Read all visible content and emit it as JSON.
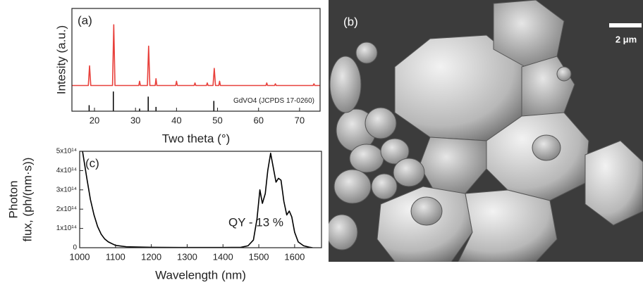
{
  "chart_data": [
    {
      "type": "line",
      "panel_label": "(a)",
      "xlabel": "Two theta (°)",
      "ylabel": "Intesity (a.u.)",
      "xlim": [
        14.5,
        75
      ],
      "xticks": [
        20,
        30,
        40,
        50,
        60,
        70
      ],
      "ylim": [
        0,
        1.2
      ],
      "series": [
        {
          "color": "#e8413c",
          "style": "line",
          "x": [
            14.5,
            18.5,
            18.8,
            19.1,
            24.4,
            24.7,
            25.0,
            30.8,
            31.0,
            31.2,
            32.9,
            33.2,
            33.5,
            34.8,
            35.0,
            35.2,
            39.8,
            40.0,
            40.2,
            44.3,
            44.5,
            44.7,
            47.3,
            47.5,
            47.7,
            48.9,
            49.2,
            49.5,
            50.3,
            50.5,
            50.7,
            61.8,
            62.0,
            62.2,
            63.9,
            64.1,
            64.3,
            73.3,
            73.5,
            73.7,
            75
          ],
          "values": [
            0.3,
            0.3,
            0.53,
            0.3,
            0.3,
            1.01,
            0.3,
            0.3,
            0.35,
            0.3,
            0.3,
            0.76,
            0.3,
            0.3,
            0.38,
            0.3,
            0.3,
            0.35,
            0.3,
            0.3,
            0.33,
            0.3,
            0.3,
            0.33,
            0.3,
            0.3,
            0.5,
            0.3,
            0.3,
            0.35,
            0.3,
            0.3,
            0.33,
            0.3,
            0.3,
            0.32,
            0.3,
            0.3,
            0.32,
            0.3,
            0.3
          ]
        },
        {
          "name": "GdVO4 (JCPDS 17-0260)",
          "color": "#000000",
          "style": "stick",
          "x": [
            18.7,
            24.6,
            31.0,
            33.1,
            35.0,
            49.1
          ],
          "values": [
            0.07,
            0.23,
            0.03,
            0.17,
            0.05,
            0.12
          ]
        }
      ]
    },
    {
      "type": "line",
      "panel_label": "(c)",
      "xlabel": "Wavelength (nm)",
      "ylabel": [
        "Photon",
        "flux, (ph/(nm·s))"
      ],
      "annotation": "QY - 13 %",
      "xlim": [
        1000,
        1675
      ],
      "xticks": [
        1000,
        1100,
        1200,
        1300,
        1400,
        1500,
        1600
      ],
      "ylim": [
        0,
        500000000000000.0
      ],
      "yticks": [
        0,
        {
          "value": 100000000000000.0,
          "label": "1x10¹⁴"
        },
        {
          "value": 200000000000000.0,
          "label": "2x10¹⁴"
        },
        {
          "value": 300000000000000.0,
          "label": "3x10¹⁴"
        },
        {
          "value": 400000000000000.0,
          "label": "4x10¹⁴"
        },
        {
          "value": 500000000000000.0,
          "label": "5x10¹⁴"
        }
      ],
      "series": [
        {
          "color": "#000000",
          "style": "line",
          "x": [
            1008,
            1020,
            1030,
            1040,
            1050,
            1060,
            1070,
            1080,
            1100,
            1130,
            1200,
            1300,
            1400,
            1450,
            1470,
            1485,
            1495,
            1503,
            1510,
            1518,
            1525,
            1533,
            1540,
            1548,
            1555,
            1562,
            1570,
            1578,
            1585,
            1592,
            1600,
            1610,
            1625,
            1640,
            1650
          ],
          "values": [
            500000000000000.0,
            360000000000000.0,
            250000000000000.0,
            170000000000000.0,
            110000000000000.0,
            70000000000000.0,
            45000000000000.0,
            30000000000000.0,
            12000000000000.0,
            5000000000000.0,
            2000000000000.0,
            1000000000000.0,
            1000000000000.0,
            2000000000000.0,
            10000000000000.0,
            40000000000000.0,
            150000000000000.0,
            300000000000000.0,
            230000000000000.0,
            280000000000000.0,
            400000000000000.0,
            490000000000000.0,
            420000000000000.0,
            340000000000000.0,
            360000000000000.0,
            350000000000000.0,
            240000000000000.0,
            170000000000000.0,
            190000000000000.0,
            160000000000000.0,
            80000000000000.0,
            30000000000000.0,
            10000000000000.0,
            3000000000000.0,
            0
          ]
        }
      ]
    }
  ],
  "image": {
    "panel_label": "(b)",
    "scale_bar": "2 μm"
  }
}
